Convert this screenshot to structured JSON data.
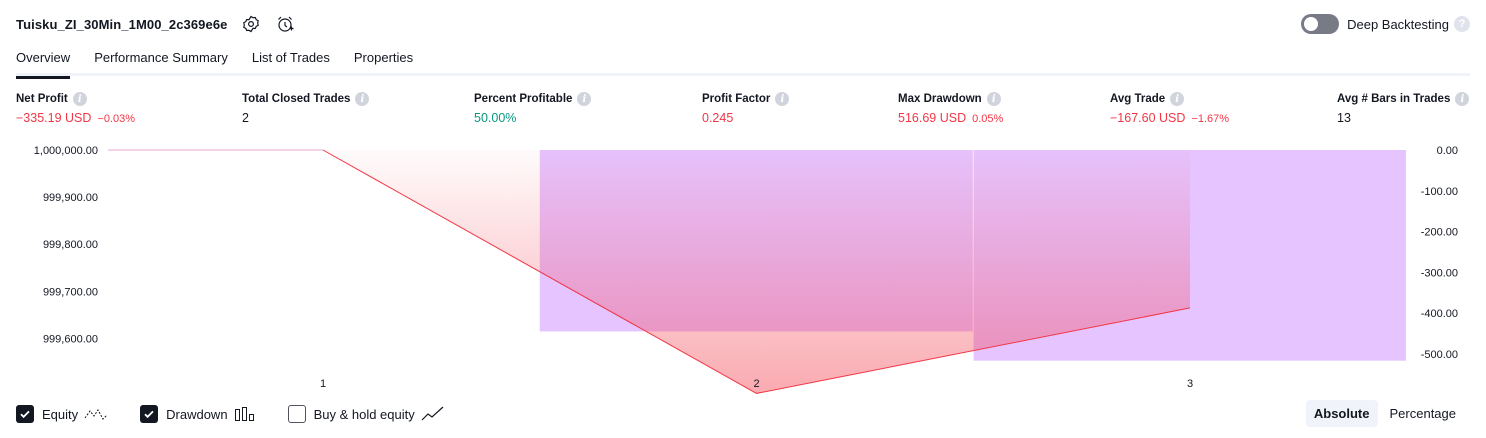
{
  "strategy": {
    "name": "Tuisku_ZI_30Min_1M00_2c369e6e",
    "settings_icon": "gear-icon",
    "alert_icon": "alarm-clock-plus-icon"
  },
  "deep_backtesting": {
    "label": "Deep Backtesting",
    "enabled": false,
    "help": "?"
  },
  "tabs": [
    {
      "label": "Overview",
      "active": true
    },
    {
      "label": "Performance Summary",
      "active": false
    },
    {
      "label": "List of Trades",
      "active": false
    },
    {
      "label": "Properties",
      "active": false
    }
  ],
  "metrics": {
    "net_profit": {
      "label": "Net Profit",
      "value": "−335.19 USD",
      "pct": "−0.03%"
    },
    "total_closed_trades": {
      "label": "Total Closed Trades",
      "value": "2"
    },
    "percent_profitable": {
      "label": "Percent Profitable",
      "value": "50.00%"
    },
    "profit_factor": {
      "label": "Profit Factor",
      "value": "0.245"
    },
    "max_drawdown": {
      "label": "Max Drawdown",
      "value": "516.69 USD",
      "pct": "0.05%"
    },
    "avg_trade": {
      "label": "Avg Trade",
      "value": "−167.60 USD",
      "pct": "−1.67%"
    },
    "avg_bars": {
      "label": "Avg # Bars in Trades",
      "value": "13"
    }
  },
  "chart_data": {
    "type": "area",
    "x": [
      1,
      2,
      3
    ],
    "x_tick_labels": [
      "1",
      "2",
      "3"
    ],
    "y_left_tick_labels": [
      "1,000,000.00",
      "999,900.00",
      "999,800.00",
      "999,700.00",
      "999,600.00"
    ],
    "y_left_ticks": [
      1000000,
      999900,
      999800,
      999700,
      999600
    ],
    "y_left_range": [
      999550,
      1000000
    ],
    "y_right_tick_labels": [
      "0.00",
      "-100.00",
      "-200.00",
      "-300.00",
      "-400.00",
      "-500.00"
    ],
    "y_right_ticks": [
      0,
      -100,
      -200,
      -300,
      -400,
      -500
    ],
    "y_right_range": [
      -520,
      0
    ],
    "series": [
      {
        "name": "Equity",
        "color": "#f23645",
        "values": [
          1000000,
          999483.31,
          999664.81
        ]
      },
      {
        "name": "Drawdown",
        "color": "#c77dff",
        "bars": [
          {
            "from_x": 1.5,
            "to_x": 2.5,
            "value": -445
          },
          {
            "from_x": 2.5,
            "to_x": 3.5,
            "value": -516.69
          }
        ]
      }
    ],
    "grid": false
  },
  "legend": [
    {
      "label": "Equity",
      "checked": true,
      "icon": "equity-line-icon"
    },
    {
      "label": "Drawdown",
      "checked": true,
      "icon": "drawdown-bars-icon"
    },
    {
      "label": "Buy & hold equity",
      "checked": false,
      "icon": "buy-hold-line-icon"
    }
  ],
  "modes": [
    {
      "label": "Absolute",
      "active": true
    },
    {
      "label": "Percentage",
      "active": false
    }
  ]
}
